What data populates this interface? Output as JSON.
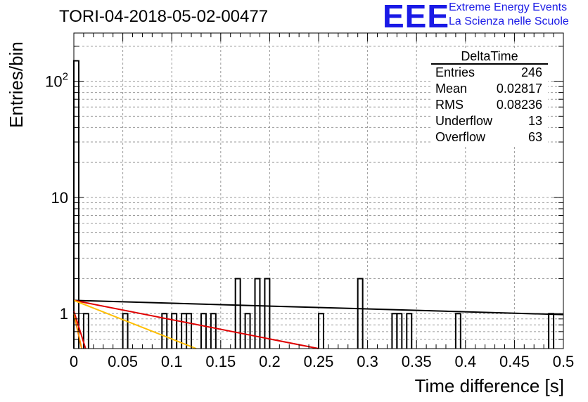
{
  "header": {
    "run_title": "TORI-04-2018-05-02-00477",
    "logo_text": "EEE",
    "logo_line1": "Extreme Energy Events",
    "logo_line2": "La Scienza nelle Scuole",
    "logo_color": "#1a1ae6"
  },
  "stats_box": {
    "title": "DeltaTime",
    "rows": [
      {
        "label": "Entries",
        "value": "246"
      },
      {
        "label": "Mean",
        "value": "0.02817"
      },
      {
        "label": "RMS",
        "value": "0.08236"
      },
      {
        "label": "Underflow",
        "value": "13"
      },
      {
        "label": "Overflow",
        "value": "63"
      }
    ]
  },
  "chart_data": {
    "type": "bar",
    "histogram": true,
    "xlabel": "Time difference [s]",
    "ylabel": "Entries/bin",
    "xlim": [
      0,
      0.5
    ],
    "ylim": [
      0.5,
      260
    ],
    "y_log": true,
    "grid": true,
    "bin_width": 0.005,
    "x_ticks": [
      "0",
      "0.05",
      "0.1",
      "0.15",
      "0.2",
      "0.25",
      "0.3",
      "0.35",
      "0.4",
      "0.45",
      "0.5"
    ],
    "y_ticks": [
      {
        "value": 1,
        "label": "1"
      },
      {
        "value": 10,
        "label": "10"
      },
      {
        "value": 100,
        "label": "10",
        "exponent": "2"
      }
    ],
    "bins": [
      {
        "x": 0.0,
        "value": 150
      },
      {
        "x": 0.01,
        "value": 1
      },
      {
        "x": 0.05,
        "value": 1
      },
      {
        "x": 0.09,
        "value": 1
      },
      {
        "x": 0.1,
        "value": 1
      },
      {
        "x": 0.11,
        "value": 1
      },
      {
        "x": 0.115,
        "value": 1
      },
      {
        "x": 0.13,
        "value": 1
      },
      {
        "x": 0.14,
        "value": 1
      },
      {
        "x": 0.165,
        "value": 2
      },
      {
        "x": 0.175,
        "value": 1
      },
      {
        "x": 0.185,
        "value": 2
      },
      {
        "x": 0.195,
        "value": 2
      },
      {
        "x": 0.25,
        "value": 1
      },
      {
        "x": 0.29,
        "value": 2
      },
      {
        "x": 0.325,
        "value": 1
      },
      {
        "x": 0.33,
        "value": 1
      },
      {
        "x": 0.34,
        "value": 1
      },
      {
        "x": 0.39,
        "value": 1
      },
      {
        "x": 0.485,
        "value": 1
      }
    ],
    "fits": [
      {
        "color": "#000000",
        "x": [
          0,
          0.5
        ],
        "y": [
          1.3,
          0.98
        ]
      },
      {
        "color": "#e00000",
        "x": [
          0,
          0.25
        ],
        "y": [
          1.3,
          0.5
        ]
      },
      {
        "color": "#ffbf00",
        "x": [
          0,
          0.125
        ],
        "y": [
          1.3,
          0.5
        ]
      },
      {
        "color": "#e00000",
        "x": [
          0,
          0.012
        ],
        "y": [
          1.05,
          0.5
        ]
      },
      {
        "color": "#ff8c00",
        "x": [
          0,
          0.008
        ],
        "y": [
          1.0,
          0.5
        ]
      }
    ]
  }
}
